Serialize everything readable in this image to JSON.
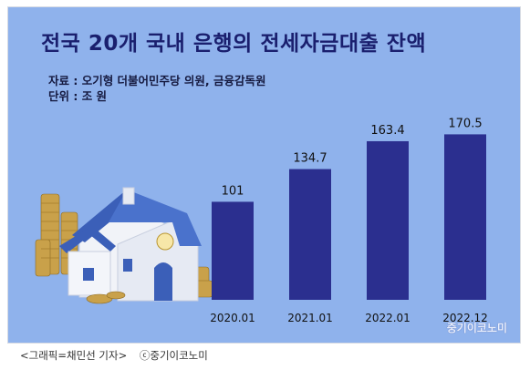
{
  "chart_data": {
    "type": "bar",
    "title": "전국 20개 국내 은행의 전세자금대출 잔액",
    "source": "자료 : 오기형 더불어민주당 의원, 금융감독원",
    "unit": "단위 : 조 원",
    "categories": [
      "2020.01",
      "2021.01",
      "2022.01",
      "2022.12"
    ],
    "values": [
      101,
      134.7,
      163.4,
      170.5
    ],
    "value_labels": [
      "101",
      "134.7",
      "163.4",
      "170.5"
    ],
    "ylim": [
      0,
      180
    ],
    "grid": false,
    "legend": "none",
    "bar_color": "#2b2f8f"
  },
  "watermark": "중기이코노미",
  "caption": {
    "graphic_credit": "<그래픽=채민선 기자>",
    "copyright": "ⓒ중기이코노미"
  },
  "colors": {
    "background": "#8fb2ec",
    "title": "#1a1f6e"
  },
  "illustration": "house-with-coins-icon"
}
